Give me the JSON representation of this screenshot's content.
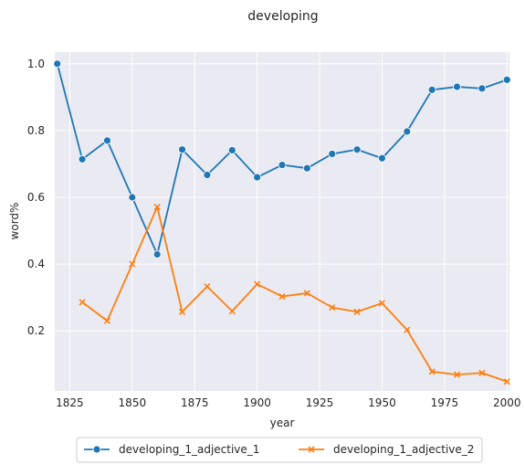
{
  "chart_data": {
    "type": "line",
    "title": "developing",
    "xlabel": "year",
    "ylabel": "word%",
    "xlim": [
      1819,
      2001
    ],
    "ylim": [
      0.02,
      1.035
    ],
    "x_ticks": [
      1825,
      1850,
      1875,
      1900,
      1925,
      1950,
      1975,
      2000
    ],
    "y_ticks": [
      0.2,
      0.4,
      0.6,
      0.8,
      1.0
    ],
    "y_tick_labels": [
      "0.2",
      "0.4",
      "0.6",
      "0.8",
      "1.0"
    ],
    "grid": true,
    "legend_position": "bottom-center",
    "series": [
      {
        "name": "developing_1_adjective_1",
        "color": "#1f77b4",
        "marker": "circle",
        "x": [
          1820,
          1830,
          1840,
          1850,
          1860,
          1870,
          1880,
          1890,
          1900,
          1910,
          1920,
          1930,
          1940,
          1950,
          1960,
          1970,
          1980,
          1990,
          2000
        ],
        "y": [
          1.0,
          0.714,
          0.77,
          0.6,
          0.429,
          0.743,
          0.667,
          0.741,
          0.66,
          0.697,
          0.687,
          0.73,
          0.743,
          0.717,
          0.797,
          0.922,
          0.931,
          0.926,
          0.952
        ]
      },
      {
        "name": "developing_1_adjective_2",
        "color": "#ff7f0e",
        "marker": "x",
        "x": [
          1830,
          1840,
          1850,
          1860,
          1870,
          1880,
          1890,
          1900,
          1910,
          1920,
          1930,
          1940,
          1950,
          1960,
          1970,
          1980,
          1990,
          2000
        ],
        "y": [
          0.286,
          0.23,
          0.4,
          0.571,
          0.257,
          0.333,
          0.259,
          0.34,
          0.303,
          0.313,
          0.27,
          0.257,
          0.283,
          0.203,
          0.078,
          0.069,
          0.074,
          0.048
        ]
      }
    ]
  }
}
